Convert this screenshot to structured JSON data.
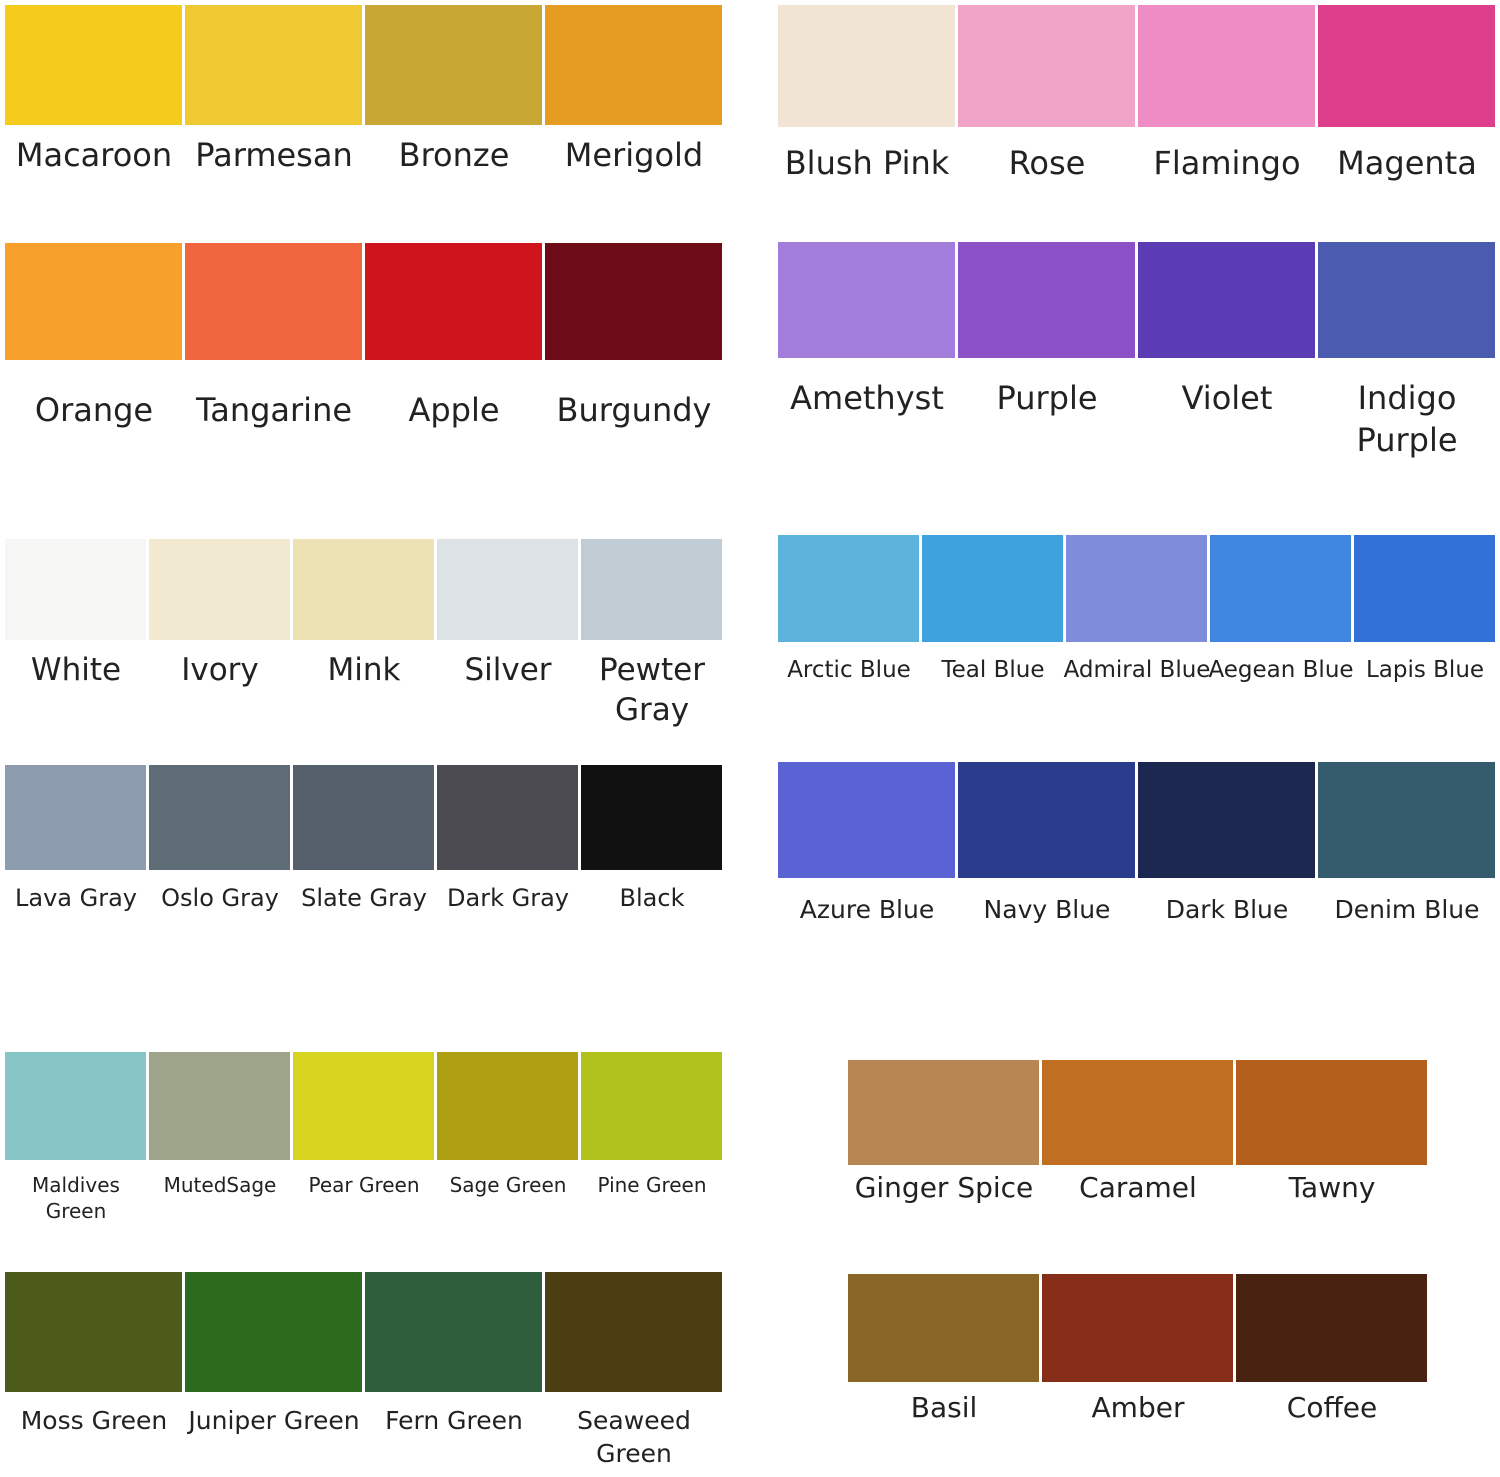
{
  "groups": [
    {
      "swatches": [
        {
          "name": "Macaroon",
          "color": "#f6cc1c"
        },
        {
          "name": "Parmesan",
          "color": "#efc832"
        },
        {
          "name": "Bronze",
          "color": "#c9a734"
        },
        {
          "name": "Merigold",
          "color": "#e49c22"
        }
      ]
    },
    {
      "swatches": [
        {
          "name": "Blush Pink",
          "color": "#f1e4d4"
        },
        {
          "name": "Rose",
          "color": "#f2a3c8"
        },
        {
          "name": "Flamingo",
          "color": "#ef8cc6"
        },
        {
          "name": "Magenta",
          "color": "#de3f8c"
        }
      ]
    },
    {
      "swatches": [
        {
          "name": "Orange",
          "color": "#f7a02c"
        },
        {
          "name": "Tangarine",
          "color": "#f0663f"
        },
        {
          "name": "Apple",
          "color": "#d0141e"
        },
        {
          "name": "Burgundy",
          "color": "#6d0c16"
        }
      ]
    },
    {
      "swatches": [
        {
          "name": "Amethyst",
          "color": "#a27ddc"
        },
        {
          "name": "Purple",
          "color": "#8a52c6"
        },
        {
          "name": "Violet",
          "color": "#5b3cb4"
        },
        {
          "name": "Indigo Purple",
          "color": "#4b5cb0"
        }
      ]
    },
    {
      "swatches": [
        {
          "name": "White",
          "color": "#f6f6f4"
        },
        {
          "name": "Ivory",
          "color": "#f1ead0"
        },
        {
          "name": "Mink",
          "color": "#ede2b4"
        },
        {
          "name": "Silver",
          "color": "#dde2e6"
        },
        {
          "name": "Pewter Gray",
          "color": "#c2ccd4"
        }
      ]
    },
    {
      "swatches": [
        {
          "name": "Arctic Blue",
          "color": "#5cb4dc"
        },
        {
          "name": "Teal Blue",
          "color": "#3ea2dc"
        },
        {
          "name": "Admiral Blue",
          "color": "#7f8cdc"
        },
        {
          "name": "Aegean Blue",
          "color": "#3e86e0"
        },
        {
          "name": "Lapis Blue",
          "color": "#3272d8"
        }
      ]
    },
    {
      "swatches": [
        {
          "name": "Lava Gray",
          "color": "#8e9cb0"
        },
        {
          "name": "Oslo Gray",
          "color": "#5e6c76"
        },
        {
          "name": "Slate Gray",
          "color": "#56606c"
        },
        {
          "name": "Dark Gray",
          "color": "#4a4a50"
        },
        {
          "name": "Black",
          "color": "#111111"
        }
      ]
    },
    {
      "swatches": [
        {
          "name": "Azure Blue",
          "color": "#5a62d4"
        },
        {
          "name": "Navy Blue",
          "color": "#2b3c8c"
        },
        {
          "name": "Dark Blue",
          "color": "#1c2850"
        },
        {
          "name": "Denim Blue",
          "color": "#355c6c"
        }
      ]
    },
    {
      "swatches": [
        {
          "name": "Maldives Green",
          "color": "#86c6c6"
        },
        {
          "name": "MutedSage",
          "color": "#9ea48a"
        },
        {
          "name": "Pear Green",
          "color": "#d6d41e"
        },
        {
          "name": "Sage Green",
          "color": "#aea012"
        },
        {
          "name": "Pine Green",
          "color": "#b2c21c"
        }
      ]
    },
    {
      "swatches": [
        {
          "name": "Ginger Spice",
          "color": "#b88652"
        },
        {
          "name": "Caramel",
          "color": "#c06e22"
        },
        {
          "name": "Tawny",
          "color": "#b4601c"
        }
      ]
    },
    {
      "swatches": [
        {
          "name": "Moss Green",
          "color": "#4c5a1a"
        },
        {
          "name": "Juniper Green",
          "color": "#2e6a1e"
        },
        {
          "name": "Fern Green",
          "color": "#2e5e3c"
        },
        {
          "name": "Seaweed Green",
          "color": "#4c3e12"
        }
      ]
    },
    {
      "swatches": [
        {
          "name": "Basil",
          "color": "#8a6626"
        },
        {
          "name": "Amber",
          "color": "#862e18"
        },
        {
          "name": "Coffee",
          "color": "#4a2212"
        }
      ]
    }
  ]
}
